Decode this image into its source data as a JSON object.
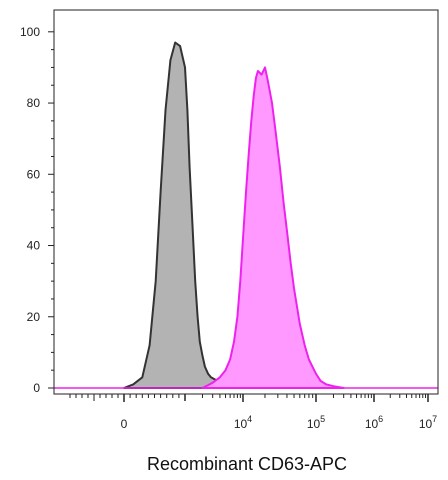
{
  "chart_data": {
    "type": "area",
    "xlabel": "Recombinant CD63-APC",
    "ylabel": "",
    "ylim": [
      0,
      105
    ],
    "y_ticks": [
      "0",
      "20",
      "40",
      "60",
      "80",
      "100"
    ],
    "x_tick_labels": [
      {
        "base": "0",
        "exp": ""
      },
      {
        "base": "10",
        "exp": "4"
      },
      {
        "base": "10",
        "exp": "5"
      },
      {
        "base": "10",
        "exp": "6"
      },
      {
        "base": "10",
        "exp": "7"
      }
    ],
    "x_scale": "biexponential",
    "x_range": [
      0,
      10000000
    ],
    "legend": "none",
    "grid": false,
    "series": [
      {
        "color": "#b3b3b3",
        "line_color": "#333333",
        "x": [
          0,
          150,
          300,
          420,
          520,
          600,
          680,
          760,
          840,
          920,
          1000,
          1100,
          1200,
          1350,
          1500,
          1650,
          1800,
          2000,
          2200,
          2500,
          2800,
          3200,
          3700,
          4300,
          5000,
          6000,
          7000,
          8000
        ],
        "y": [
          0,
          1,
          3,
          12,
          30,
          55,
          78,
          92,
          97,
          96,
          90,
          78,
          62,
          45,
          30,
          20,
          13,
          9,
          6,
          4,
          3,
          2.5,
          2,
          1.5,
          1,
          0.5,
          0.3,
          0
        ]
      },
      {
        "color": "#ff99ff",
        "line_color": "#ee22ee",
        "x": [
          2000,
          3000,
          4000,
          5000,
          6000,
          7000,
          8000,
          9000,
          10000,
          11000,
          12000,
          13000,
          14000,
          15000,
          16000,
          18000,
          20000,
          22000,
          25000,
          28000,
          32000,
          36000,
          40000,
          45000,
          50000,
          60000,
          70000,
          80000,
          100000,
          120000,
          150000,
          200000,
          300000
        ],
        "y": [
          0,
          1.5,
          3,
          5,
          8,
          13,
          20,
          30,
          42,
          55,
          66,
          75,
          82,
          87,
          89,
          88,
          90,
          86,
          80,
          72,
          62,
          52,
          44,
          35,
          28,
          18,
          12,
          8,
          4,
          2,
          1,
          0.5,
          0
        ]
      }
    ]
  }
}
